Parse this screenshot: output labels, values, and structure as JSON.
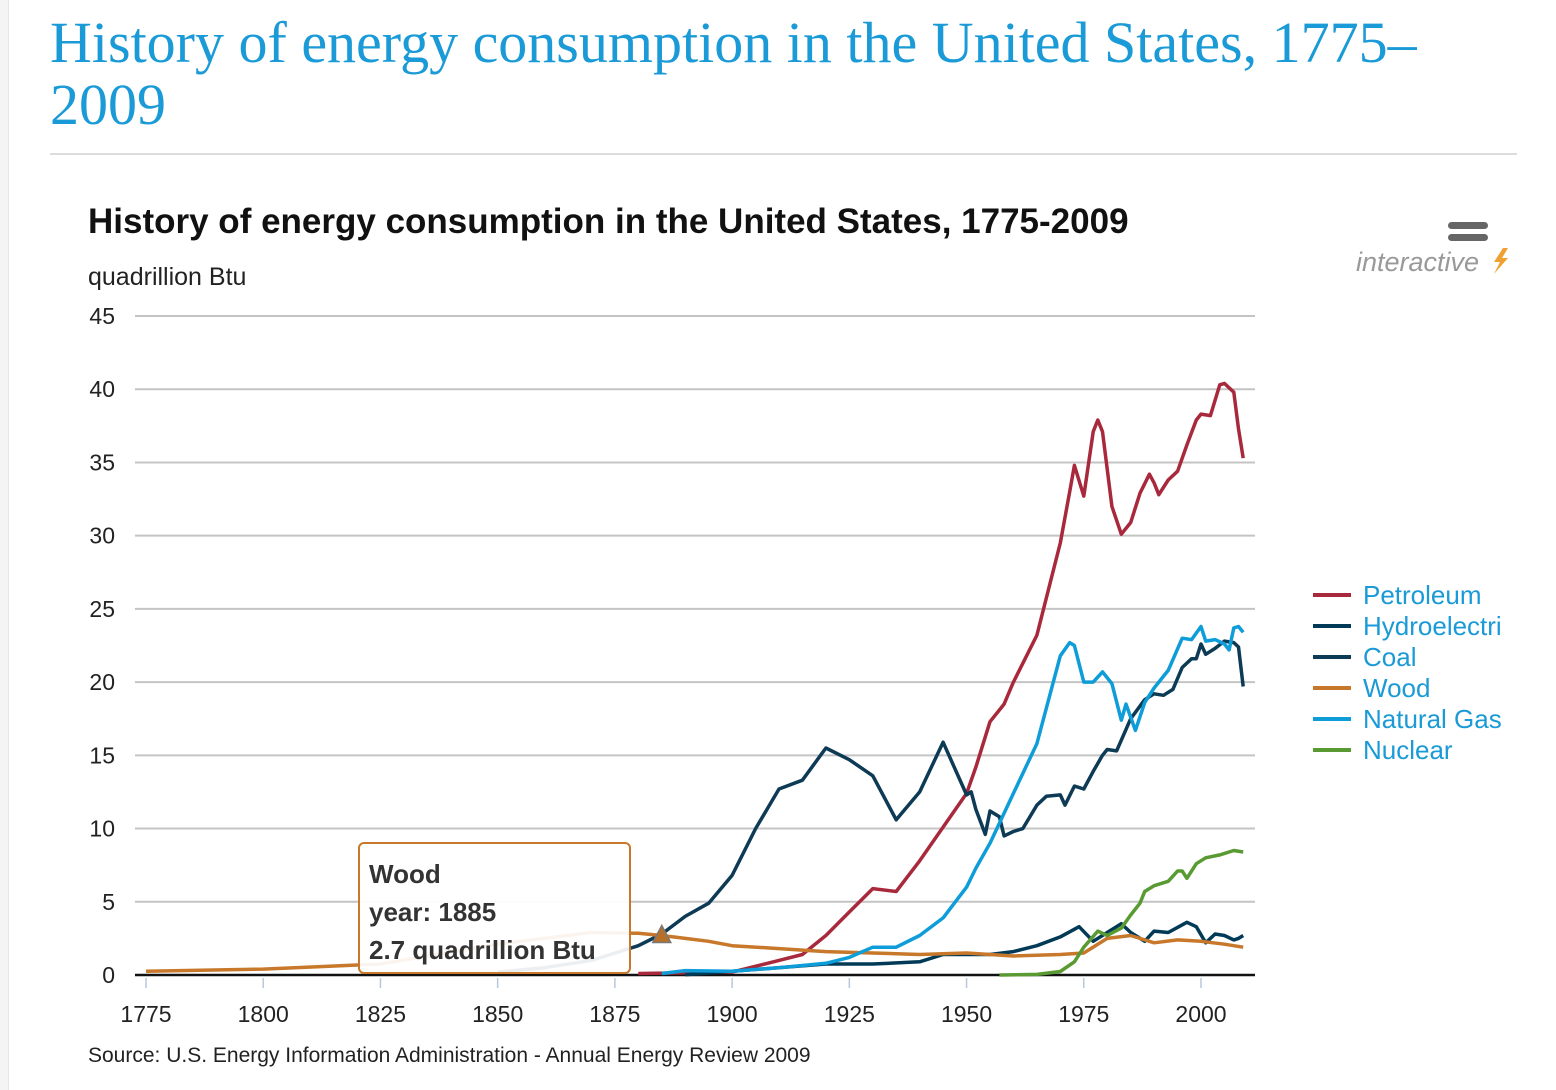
{
  "page": {
    "title": "History of energy consumption in the United States, 1775–2009"
  },
  "badge": {
    "text": "interactive",
    "icon": "lightning-icon",
    "menu_icon": "menu-icon"
  },
  "chart_data": {
    "type": "line",
    "title": "History of energy consumption in the United States, 1775-2009",
    "ylabel": "quadrillion Btu",
    "xlabel": "",
    "source": "Source: U.S. Energy Information Administration - Annual Energy Review 2009",
    "xlim": [
      1775,
      2009
    ],
    "ylim": [
      0,
      45
    ],
    "xticks": [
      1775,
      1800,
      1825,
      1850,
      1875,
      1900,
      1925,
      1950,
      1975,
      2000
    ],
    "yticks": [
      0,
      5,
      10,
      15,
      20,
      25,
      30,
      35,
      40,
      45
    ],
    "grid": true,
    "legend_position": "right",
    "series": [
      {
        "name": "Petroleum",
        "color": "#a8293c",
        "points": [
          [
            1880,
            0.1
          ],
          [
            1900,
            0.2
          ],
          [
            1910,
            1.0
          ],
          [
            1915,
            1.4
          ],
          [
            1920,
            2.7
          ],
          [
            1925,
            4.3
          ],
          [
            1930,
            5.9
          ],
          [
            1935,
            5.7
          ],
          [
            1940,
            7.8
          ],
          [
            1945,
            10.1
          ],
          [
            1950,
            12.4
          ],
          [
            1952,
            14.2
          ],
          [
            1955,
            17.3
          ],
          [
            1958,
            18.5
          ],
          [
            1960,
            20.0
          ],
          [
            1965,
            23.2
          ],
          [
            1968,
            27.0
          ],
          [
            1970,
            29.5
          ],
          [
            1972,
            33.0
          ],
          [
            1973,
            34.8
          ],
          [
            1975,
            32.7
          ],
          [
            1977,
            37.1
          ],
          [
            1978,
            37.9
          ],
          [
            1979,
            37.1
          ],
          [
            1981,
            32.0
          ],
          [
            1983,
            30.1
          ],
          [
            1985,
            30.9
          ],
          [
            1987,
            32.9
          ],
          [
            1989,
            34.2
          ],
          [
            1990,
            33.6
          ],
          [
            1991,
            32.8
          ],
          [
            1993,
            33.8
          ],
          [
            1995,
            34.4
          ],
          [
            1997,
            36.2
          ],
          [
            1999,
            37.9
          ],
          [
            2000,
            38.3
          ],
          [
            2002,
            38.2
          ],
          [
            2004,
            40.3
          ],
          [
            2005,
            40.4
          ],
          [
            2007,
            39.8
          ],
          [
            2008,
            37.3
          ],
          [
            2009,
            35.3
          ]
        ]
      },
      {
        "name": "Hydroelectri",
        "color": "#003a57",
        "points": [
          [
            1890,
            0.02
          ],
          [
            1900,
            0.25
          ],
          [
            1920,
            0.75
          ],
          [
            1930,
            0.75
          ],
          [
            1940,
            0.9
          ],
          [
            1945,
            1.4
          ],
          [
            1950,
            1.4
          ],
          [
            1955,
            1.4
          ],
          [
            1960,
            1.6
          ],
          [
            1965,
            2.0
          ],
          [
            1970,
            2.6
          ],
          [
            1974,
            3.3
          ],
          [
            1977,
            2.3
          ],
          [
            1980,
            2.9
          ],
          [
            1983,
            3.5
          ],
          [
            1985,
            2.9
          ],
          [
            1988,
            2.3
          ],
          [
            1990,
            3.0
          ],
          [
            1993,
            2.9
          ],
          [
            1997,
            3.6
          ],
          [
            1999,
            3.3
          ],
          [
            2001,
            2.2
          ],
          [
            2003,
            2.8
          ],
          [
            2005,
            2.7
          ],
          [
            2007,
            2.4
          ],
          [
            2008,
            2.5
          ],
          [
            2009,
            2.7
          ]
        ]
      },
      {
        "name": "Coal",
        "color": "#0d3a55",
        "points": [
          [
            1850,
            0.2
          ],
          [
            1860,
            0.5
          ],
          [
            1870,
            1.0
          ],
          [
            1880,
            2.0
          ],
          [
            1885,
            2.8
          ],
          [
            1890,
            4.0
          ],
          [
            1895,
            4.9
          ],
          [
            1900,
            6.8
          ],
          [
            1905,
            10.0
          ],
          [
            1910,
            12.7
          ],
          [
            1915,
            13.3
          ],
          [
            1920,
            15.5
          ],
          [
            1925,
            14.7
          ],
          [
            1930,
            13.6
          ],
          [
            1935,
            10.6
          ],
          [
            1940,
            12.5
          ],
          [
            1945,
            15.9
          ],
          [
            1950,
            12.3
          ],
          [
            1951,
            12.5
          ],
          [
            1952,
            11.3
          ],
          [
            1954,
            9.6
          ],
          [
            1955,
            11.2
          ],
          [
            1957,
            10.8
          ],
          [
            1958,
            9.5
          ],
          [
            1960,
            9.8
          ],
          [
            1962,
            10.0
          ],
          [
            1965,
            11.6
          ],
          [
            1967,
            12.2
          ],
          [
            1970,
            12.3
          ],
          [
            1971,
            11.6
          ],
          [
            1973,
            12.9
          ],
          [
            1975,
            12.7
          ],
          [
            1977,
            13.9
          ],
          [
            1979,
            15.0
          ],
          [
            1980,
            15.4
          ],
          [
            1982,
            15.3
          ],
          [
            1985,
            17.5
          ],
          [
            1988,
            18.8
          ],
          [
            1990,
            19.2
          ],
          [
            1992,
            19.1
          ],
          [
            1994,
            19.5
          ],
          [
            1996,
            21.0
          ],
          [
            1998,
            21.6
          ],
          [
            1999,
            21.6
          ],
          [
            2000,
            22.6
          ],
          [
            2001,
            21.9
          ],
          [
            2003,
            22.3
          ],
          [
            2005,
            22.8
          ],
          [
            2007,
            22.7
          ],
          [
            2008,
            22.4
          ],
          [
            2009,
            19.7
          ]
        ]
      },
      {
        "name": "Wood",
        "color": "#c8782a",
        "points": [
          [
            1775,
            0.25
          ],
          [
            1800,
            0.4
          ],
          [
            1825,
            0.75
          ],
          [
            1850,
            2.1
          ],
          [
            1870,
            2.9
          ],
          [
            1880,
            2.85
          ],
          [
            1885,
            2.7
          ],
          [
            1890,
            2.5
          ],
          [
            1895,
            2.3
          ],
          [
            1900,
            2.0
          ],
          [
            1910,
            1.8
          ],
          [
            1920,
            1.6
          ],
          [
            1930,
            1.5
          ],
          [
            1940,
            1.4
          ],
          [
            1950,
            1.5
          ],
          [
            1955,
            1.4
          ],
          [
            1960,
            1.3
          ],
          [
            1970,
            1.4
          ],
          [
            1975,
            1.5
          ],
          [
            1980,
            2.5
          ],
          [
            1985,
            2.7
          ],
          [
            1990,
            2.2
          ],
          [
            1995,
            2.4
          ],
          [
            2000,
            2.3
          ],
          [
            2005,
            2.1
          ],
          [
            2009,
            1.9
          ]
        ]
      },
      {
        "name": "Natural Gas",
        "color": "#0e9dd9",
        "points": [
          [
            1885,
            0.1
          ],
          [
            1890,
            0.3
          ],
          [
            1900,
            0.25
          ],
          [
            1910,
            0.5
          ],
          [
            1920,
            0.8
          ],
          [
            1925,
            1.2
          ],
          [
            1930,
            1.9
          ],
          [
            1935,
            1.9
          ],
          [
            1940,
            2.7
          ],
          [
            1945,
            3.9
          ],
          [
            1950,
            6.0
          ],
          [
            1952,
            7.3
          ],
          [
            1955,
            9.0
          ],
          [
            1960,
            12.4
          ],
          [
            1965,
            15.8
          ],
          [
            1970,
            21.8
          ],
          [
            1972,
            22.7
          ],
          [
            1973,
            22.5
          ],
          [
            1975,
            20.0
          ],
          [
            1977,
            20.0
          ],
          [
            1979,
            20.7
          ],
          [
            1981,
            19.9
          ],
          [
            1983,
            17.4
          ],
          [
            1984,
            18.5
          ],
          [
            1986,
            16.7
          ],
          [
            1988,
            18.6
          ],
          [
            1990,
            19.6
          ],
          [
            1993,
            20.8
          ],
          [
            1996,
            23.0
          ],
          [
            1998,
            22.9
          ],
          [
            2000,
            23.8
          ],
          [
            2001,
            22.8
          ],
          [
            2003,
            22.9
          ],
          [
            2005,
            22.6
          ],
          [
            2006,
            22.2
          ],
          [
            2007,
            23.7
          ],
          [
            2008,
            23.8
          ],
          [
            2009,
            23.4
          ]
        ]
      },
      {
        "name": "Nuclear",
        "color": "#5a9a32",
        "points": [
          [
            1957,
            0.0
          ],
          [
            1965,
            0.04
          ],
          [
            1970,
            0.24
          ],
          [
            1973,
            0.9
          ],
          [
            1975,
            1.9
          ],
          [
            1978,
            3.0
          ],
          [
            1980,
            2.7
          ],
          [
            1983,
            3.2
          ],
          [
            1985,
            4.1
          ],
          [
            1987,
            4.9
          ],
          [
            1988,
            5.7
          ],
          [
            1990,
            6.1
          ],
          [
            1993,
            6.4
          ],
          [
            1995,
            7.1
          ],
          [
            1996,
            7.1
          ],
          [
            1997,
            6.6
          ],
          [
            1999,
            7.6
          ],
          [
            2001,
            8.0
          ],
          [
            2004,
            8.2
          ],
          [
            2007,
            8.5
          ],
          [
            2009,
            8.4
          ]
        ]
      }
    ],
    "tooltip": {
      "series": "Wood",
      "x": 1885,
      "y": 2.7,
      "line1": "Wood",
      "line2": "year: 1885",
      "line3": "2.7 quadrillion Btu"
    }
  }
}
